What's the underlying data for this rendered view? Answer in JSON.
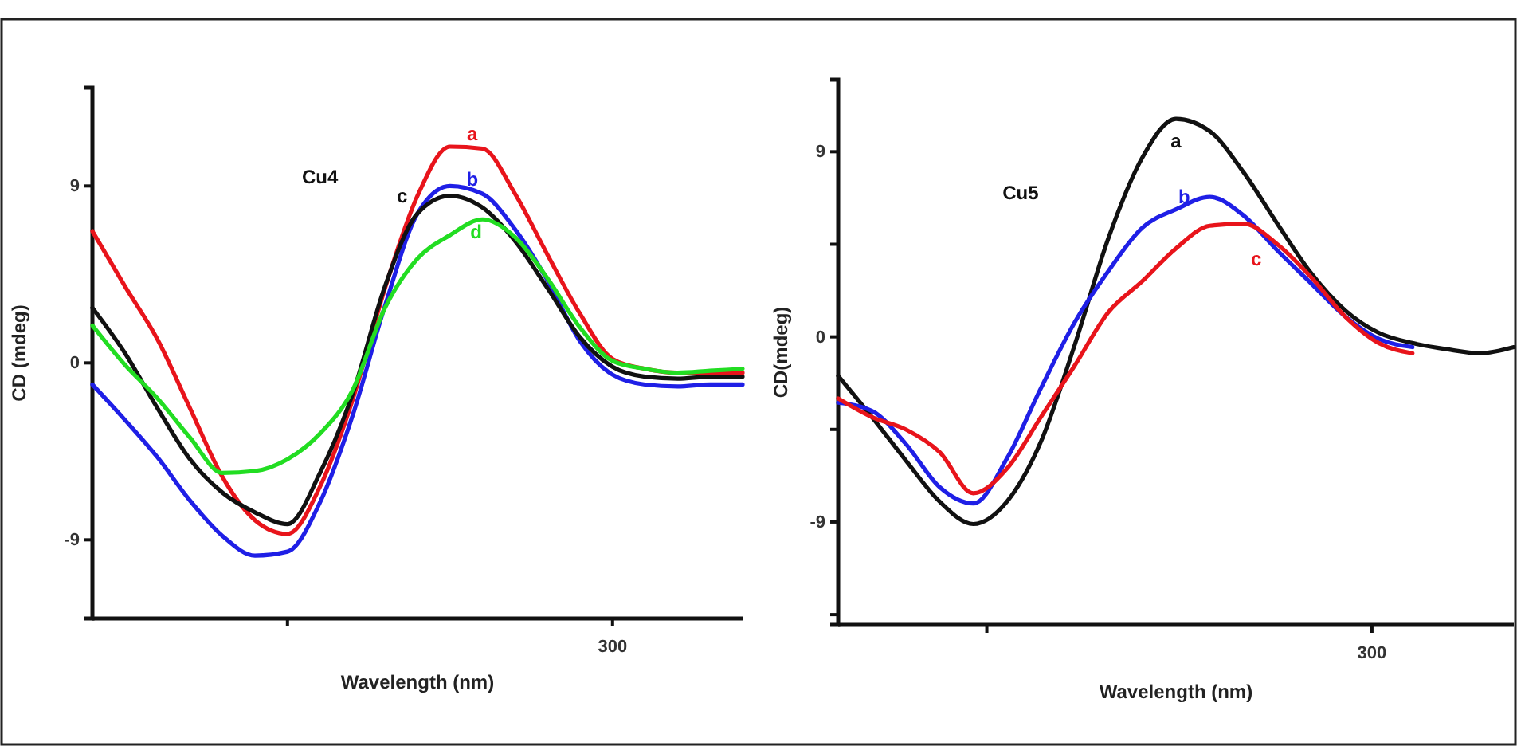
{
  "chart_data": [
    {
      "type": "line",
      "title": "Cu4",
      "xlabel": "Wavelength (nm)",
      "ylabel": "CD (mdeg)",
      "ylim": [
        -13,
        14
      ],
      "yticks": [
        -9,
        0,
        9
      ],
      "categories": [
        null,
        null,
        null,
        null,
        null,
        null,
        null,
        null,
        null,
        null,
        null,
        null,
        null,
        null,
        null,
        null,
        null,
        null,
        null,
        null,
        null
      ],
      "series": [
        {
          "name": "a",
          "color": "#e8141b",
          "values": [
            6.7,
            3.9,
            1.2,
            -2.3,
            -5.8,
            -8.0,
            -8.7,
            -6.3,
            -1.9,
            3.8,
            8.5,
            11.0,
            10.9,
            8.6,
            5.5,
            2.5,
            0.2,
            -0.3,
            -0.5,
            -0.5,
            -0.5
          ]
        },
        {
          "name": "b",
          "color": "#1f1fe6",
          "values": [
            -1.1,
            -2.9,
            -4.8,
            -7.0,
            -8.8,
            -9.8,
            -9.6,
            -7.1,
            -2.7,
            2.9,
            7.6,
            9.0,
            8.6,
            6.8,
            4.2,
            1.1,
            -0.6,
            -1.1,
            -1.2,
            -1.1,
            -1.1
          ]
        },
        {
          "name": "c",
          "color": "#111111",
          "values": [
            2.8,
            0.5,
            -2.3,
            -4.9,
            -6.6,
            -7.6,
            -8.2,
            -5.6,
            -1.6,
            3.9,
            7.6,
            8.5,
            7.9,
            6.2,
            3.8,
            1.3,
            -0.2,
            -0.7,
            -0.8,
            -0.7,
            -0.7
          ]
        },
        {
          "name": "d",
          "color": "#22dd22",
          "values": [
            1.9,
            -0.1,
            -1.8,
            -3.8,
            -5.6,
            -5.5,
            -4.9,
            -3.6,
            -1.4,
            2.8,
            5.3,
            6.5,
            7.3,
            6.4,
            4.3,
            1.8,
            0.1,
            -0.3,
            -0.5,
            -0.4,
            -0.3
          ]
        }
      ],
      "annotations": [
        "300"
      ]
    },
    {
      "type": "line",
      "title": "Cu5",
      "xlabel": "Wavelength (nm)",
      "ylabel": "CD(mdeg)",
      "ylim": [
        -14,
        12.5
      ],
      "yticks": [
        {
          "value": -13.5,
          "label": null
        },
        -9,
        {
          "value": -4.5,
          "label": null
        },
        0,
        {
          "value": 4.5,
          "label": null
        },
        9
      ],
      "categories": [
        null,
        null,
        null,
        null,
        null,
        null,
        null,
        null,
        null,
        null,
        null,
        null,
        null,
        null,
        null,
        null,
        null,
        null,
        null,
        null,
        null
      ],
      "series": [
        {
          "name": "a",
          "color": "#111111",
          "values": [
            -1.9,
            -3.9,
            -6.0,
            -8.0,
            -9.1,
            -8.0,
            -5.1,
            -0.4,
            4.8,
            8.7,
            10.6,
            10.0,
            8.0,
            5.5,
            3.1,
            1.3,
            0.2,
            -0.3,
            -0.6,
            -0.8,
            -0.5
          ]
        },
        {
          "name": "b",
          "color": "#1f1fe6",
          "values": [
            -3.2,
            -3.6,
            -5.2,
            -7.3,
            -8.1,
            -5.9,
            -2.5,
            0.7,
            3.2,
            5.3,
            6.2,
            6.8,
            5.9,
            4.2,
            2.6,
            1.0,
            -0.1,
            -0.5,
            null,
            null,
            null
          ]
        },
        {
          "name": "c",
          "color": "#e8141b",
          "values": [
            -3.0,
            -3.9,
            -4.5,
            -5.6,
            -7.6,
            -6.4,
            -3.9,
            -1.4,
            1.2,
            2.7,
            4.3,
            5.4,
            5.5,
            4.5,
            2.9,
            1.0,
            -0.3,
            -0.8,
            null,
            null,
            null
          ]
        }
      ],
      "annotations": [
        "300"
      ]
    }
  ]
}
